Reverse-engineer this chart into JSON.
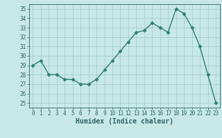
{
  "x": [
    0,
    1,
    2,
    3,
    4,
    5,
    6,
    7,
    8,
    9,
    10,
    11,
    12,
    13,
    14,
    15,
    16,
    17,
    18,
    19,
    20,
    21,
    22,
    23
  ],
  "y": [
    29,
    29.5,
    28,
    28,
    27.5,
    27.5,
    27,
    27,
    27.5,
    28.5,
    29.5,
    30.5,
    31.5,
    32.5,
    32.7,
    33.5,
    33,
    32.5,
    35,
    34.5,
    33,
    31,
    28,
    25
  ],
  "line_color": "#2e7d6e",
  "marker": "D",
  "marker_size": 2.5,
  "bg_color": "#c8e8e8",
  "grid_color": "#a0c8c8",
  "xlabel": "Humidex (Indice chaleur)",
  "xlim": [
    -0.5,
    23.5
  ],
  "ylim": [
    24.5,
    35.5
  ],
  "yticks": [
    25,
    26,
    27,
    28,
    29,
    30,
    31,
    32,
    33,
    34,
    35
  ],
  "xticks": [
    0,
    1,
    2,
    3,
    4,
    5,
    6,
    7,
    8,
    9,
    10,
    11,
    12,
    13,
    14,
    15,
    16,
    17,
    18,
    19,
    20,
    21,
    22,
    23
  ],
  "tick_label_color": "#2e6060",
  "axis_color": "#2e6060",
  "xlabel_color": "#2e6060",
  "xlabel_fontsize": 7.0,
  "tick_fontsize": 5.5,
  "linewidth": 1.0
}
